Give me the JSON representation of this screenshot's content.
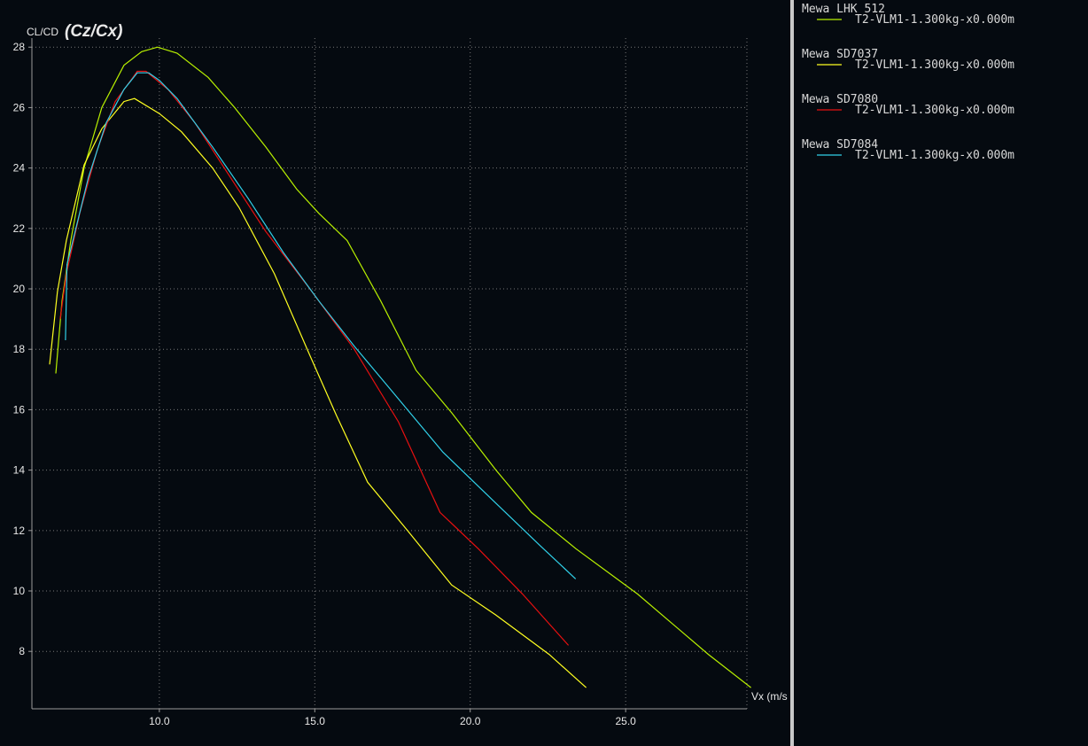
{
  "chart_data": {
    "type": "line",
    "y_label": "CL/CD",
    "y_label_extra": "(Cz/Cx)",
    "x_label": "Vx (m/s",
    "xlim": [
      5.9,
      28.9
    ],
    "ylim": [
      6.1,
      28.3
    ],
    "xticks": [
      {
        "value": 10,
        "label": "10.0"
      },
      {
        "value": 15,
        "label": "15.0"
      },
      {
        "value": 20,
        "label": "20.0"
      },
      {
        "value": 25,
        "label": "25.0"
      }
    ],
    "yticks": [
      8,
      10,
      12,
      14,
      16,
      18,
      20,
      22,
      24,
      26,
      28
    ],
    "grid": true,
    "series": [
      {
        "name": "Mewa LHK 512",
        "detail": "T2-VLM1-1.300kg-x0.000m",
        "color": "#b8f000",
        "x": [
          6.67,
          6.87,
          7.15,
          7.58,
          8.15,
          8.86,
          9.43,
          9.94,
          10.57,
          11.57,
          12.42,
          13.42,
          14.42,
          15.13,
          16.04,
          17.12,
          18.26,
          19.4,
          20.83,
          21.97,
          23.4,
          25.38,
          27.66,
          29.03
        ],
        "values": [
          17.2,
          19.6,
          21.6,
          24.0,
          26.0,
          27.4,
          27.85,
          28.0,
          27.8,
          27.0,
          26.0,
          24.7,
          23.3,
          22.5,
          21.6,
          19.6,
          17.3,
          15.9,
          14.0,
          12.6,
          11.4,
          9.9,
          7.9,
          6.8
        ]
      },
      {
        "name": "Mewa SD7037",
        "detail": "T2-VLM1-1.300kg-x0.000m",
        "color": "#ffff20",
        "x": [
          6.47,
          6.72,
          7.01,
          7.58,
          8.15,
          8.86,
          9.2,
          10.0,
          10.71,
          11.71,
          12.56,
          13.7,
          14.84,
          15.7,
          16.7,
          17.98,
          19.4,
          20.83,
          22.54,
          23.73
        ],
        "values": [
          17.5,
          19.9,
          21.6,
          24.1,
          25.3,
          26.2,
          26.3,
          25.8,
          25.2,
          24.0,
          22.7,
          20.5,
          17.8,
          15.8,
          13.6,
          12.0,
          10.2,
          9.2,
          7.9,
          6.8
        ]
      },
      {
        "name": "Mewa SD7080",
        "detail": "T2-VLM1-1.300kg-x0.000m",
        "color": "#e81010",
        "x": [
          6.81,
          7.01,
          7.44,
          8.0,
          8.58,
          9.15,
          9.29,
          9.57,
          10.28,
          11.14,
          12.28,
          13.42,
          14.84,
          16.27,
          17.69,
          19.03,
          20.26,
          21.68,
          23.16
        ],
        "values": [
          19.0,
          20.5,
          22.5,
          24.6,
          26.2,
          27.0,
          27.2,
          27.2,
          26.6,
          25.5,
          23.7,
          21.9,
          20.0,
          18.0,
          15.6,
          12.6,
          11.4,
          9.9,
          8.2
        ]
      },
      {
        "name": "Mewa SD7084",
        "detail": "T2-VLM1-1.300kg-x0.000m",
        "color": "#30d0e8",
        "x": [
          6.98,
          7.03,
          7.29,
          7.72,
          8.29,
          8.86,
          9.29,
          9.66,
          10.0,
          10.57,
          11.71,
          12.85,
          13.99,
          15.13,
          16.27,
          17.41,
          19.12,
          20.83,
          22.25,
          23.39
        ],
        "values": [
          18.3,
          20.8,
          21.9,
          23.7,
          25.5,
          26.6,
          27.15,
          27.15,
          26.9,
          26.3,
          24.7,
          23.0,
          21.2,
          19.6,
          18.1,
          16.7,
          14.6,
          12.9,
          11.5,
          10.4
        ]
      }
    ]
  }
}
